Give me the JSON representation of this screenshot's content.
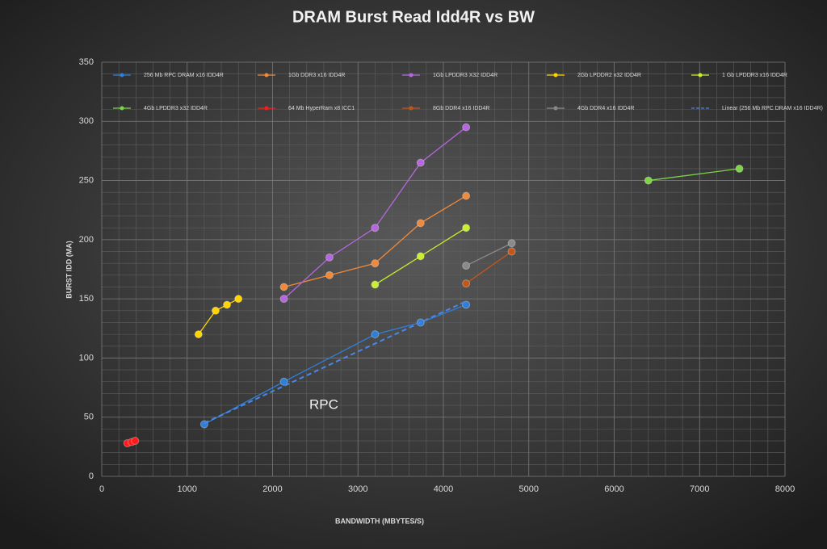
{
  "chart_data": {
    "type": "line",
    "title": "DRAM Burst Read Idd4R vs BW",
    "x_label": "BANDWIDTH (MBYTES/S)",
    "y_label": "BURST IDD (MA)",
    "xlim": [
      0,
      8000
    ],
    "xticks": [
      0,
      1000,
      2000,
      3000,
      4000,
      5000,
      6000,
      7000,
      8000
    ],
    "ylim": [
      0,
      350
    ],
    "yticks": [
      0,
      50,
      100,
      150,
      200,
      250,
      300,
      350
    ],
    "grid": true,
    "minor_grid": true,
    "legend": "top",
    "annotation": {
      "text": "RPC",
      "x": 2600,
      "y": 60
    },
    "series": [
      {
        "name": "256 Mb RPC DRAM x16 IDD4R",
        "color": "#2f7fd8",
        "x": [
          1200,
          2133,
          3200,
          3733,
          4266
        ],
        "values": [
          44,
          80,
          120,
          130,
          145
        ],
        "markers": true
      },
      {
        "name": "1Gb DDR3 x16 IDD4R",
        "color": "#f0893a",
        "x": [
          2133,
          2666,
          3200,
          3733,
          4266
        ],
        "values": [
          160,
          170,
          180,
          214,
          237
        ],
        "markers": true
      },
      {
        "name": "1Gb LPDDR3 X32 IDD4R",
        "color": "#b667e0",
        "x": [
          2133,
          2666,
          3200,
          3733,
          4266
        ],
        "values": [
          150,
          185,
          210,
          265,
          295
        ],
        "markers": true
      },
      {
        "name": "2Gb LPDDR2 x32 IDD4R",
        "color": "#ffd400",
        "x": [
          1133,
          1333,
          1466,
          1600
        ],
        "values": [
          120,
          140,
          145,
          150
        ],
        "markers": true
      },
      {
        "name": "1 Gb LPDDR3 x16 IDD4R",
        "color": "#c8f02c",
        "x": [
          3200,
          3733,
          4266
        ],
        "values": [
          162,
          186,
          210
        ],
        "markers": true
      },
      {
        "name": "4Gb LPDDR3 x32 IDD4R",
        "color": "#7ed348",
        "x": [
          6400,
          7466
        ],
        "values": [
          250,
          260
        ],
        "markers": true
      },
      {
        "name": "64 Mb HyperRam x8 ICC1",
        "color": "#ff1a1a",
        "x": [
          300,
          350,
          390
        ],
        "values": [
          28,
          29,
          30
        ],
        "markers": true
      },
      {
        "name": "8Gb DDR4 x16 IDD4R",
        "color": "#c5561a",
        "x": [
          4266,
          4800
        ],
        "values": [
          163,
          190
        ],
        "markers": true
      },
      {
        "name": "4Gb DDR4 x16 IDD4R",
        "color": "#8a8a8a",
        "x": [
          4266,
          4800
        ],
        "values": [
          178,
          197
        ],
        "markers": true
      },
      {
        "name": "Linear (256 Mb RPC DRAM x16 IDD4R)",
        "color": "#4a86e8",
        "x": [
          1200,
          4266
        ],
        "values": [
          45,
          148
        ],
        "markers": false,
        "dash": true
      }
    ]
  }
}
